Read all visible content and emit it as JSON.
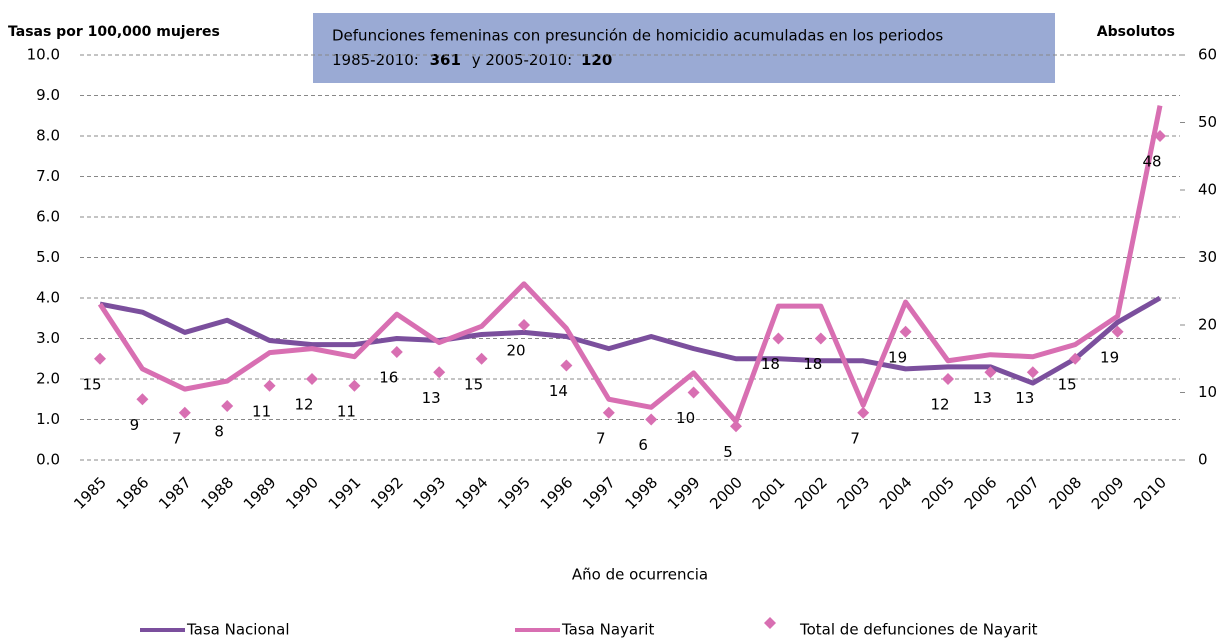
{
  "chart_data": {
    "type": "line",
    "y_label": "Tasas por 100,000 mujeres",
    "y2_label": "Absolutos",
    "x_label": "Año de ocurrencia",
    "annotation": {
      "text": "Defunciones femeninas con presunción de homicidio acumuladas en los periodos",
      "period1_label": "1985-2010:",
      "period1_value": 361,
      "period2_label": "y 2005-2010:",
      "period2_value": 120
    },
    "categories": [
      "1985",
      "1986",
      "1987",
      "1988",
      "1989",
      "1990",
      "1991",
      "1992",
      "1993",
      "1994",
      "1995",
      "1996",
      "1997",
      "1998",
      "1999",
      "2000",
      "2001",
      "2002",
      "2003",
      "2004",
      "2005",
      "2006",
      "2007",
      "2008",
      "2009",
      "2010"
    ],
    "ylim": [
      0,
      10
    ],
    "yticks": [
      {
        "value": 0,
        "label": "0.0"
      },
      {
        "value": 1,
        "label": "1.0"
      },
      {
        "value": 2,
        "label": "2.0"
      },
      {
        "value": 3,
        "label": "3.0"
      },
      {
        "value": 4,
        "label": "4.0"
      },
      {
        "value": 5,
        "label": "5.0"
      },
      {
        "value": 6,
        "label": "6.0"
      },
      {
        "value": 7,
        "label": "7.0"
      },
      {
        "value": 8,
        "label": "8.0"
      },
      {
        "value": 9,
        "label": "9.0"
      },
      {
        "value": 10,
        "label": "10.0"
      }
    ],
    "y2lim": [
      0,
      60
    ],
    "y2ticks": [
      0,
      10,
      20,
      30,
      40,
      50,
      60
    ],
    "grid": true,
    "legend": "bottom",
    "series": [
      {
        "name": "Tasa  Nacional",
        "color": "#7b4f9d",
        "type": "line",
        "values": [
          3.85,
          3.65,
          3.15,
          3.45,
          2.95,
          2.85,
          2.85,
          3.0,
          2.95,
          3.1,
          3.15,
          3.05,
          2.75,
          3.05,
          2.75,
          2.5,
          2.5,
          2.45,
          2.45,
          2.25,
          2.3,
          2.3,
          1.9,
          2.5,
          3.4,
          4.0
        ]
      },
      {
        "name": "Tasa  Nayarit",
        "color": "#d86fb2",
        "type": "line",
        "values": [
          3.85,
          2.25,
          1.75,
          1.95,
          2.65,
          2.75,
          2.55,
          3.6,
          2.9,
          3.3,
          4.35,
          3.25,
          1.5,
          1.3,
          2.15,
          0.95,
          3.8,
          3.8,
          1.35,
          3.9,
          2.45,
          2.6,
          2.55,
          2.85,
          3.55,
          8.75
        ]
      },
      {
        "name": "Total de defunciones de Nayarit",
        "color": "#d86fb2",
        "type": "scatter",
        "axis": "y2",
        "values": [
          15,
          9,
          7,
          8,
          11,
          12,
          11,
          16,
          13,
          15,
          20,
          14,
          7,
          6,
          10,
          5,
          18,
          18,
          7,
          19,
          12,
          13,
          13,
          15,
          19,
          48
        ]
      }
    ]
  }
}
